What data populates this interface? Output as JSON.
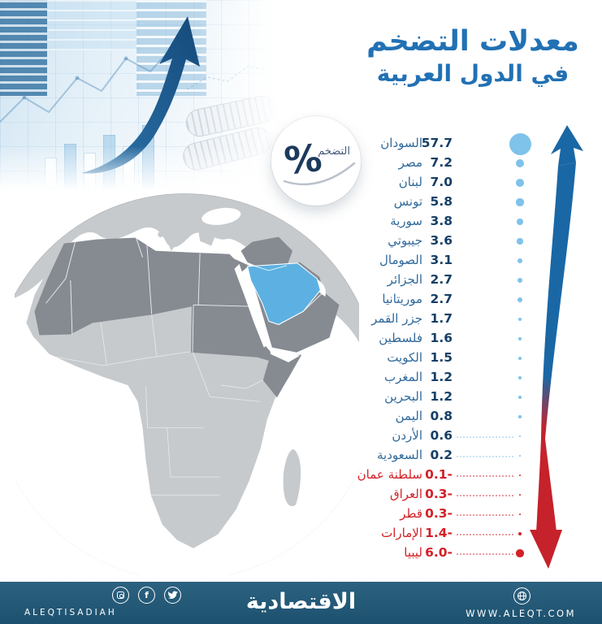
{
  "title": {
    "line1": "معدلات التضخم",
    "line2": "في الدول العربية"
  },
  "badge": {
    "label": "التضخم",
    "symbol": "%"
  },
  "chart_data": {
    "type": "scatter",
    "title": "معدلات التضخم في الدول العربية",
    "unit": "%",
    "note": "proportional-dot ranking; dot area scales with |inflation rate|; blue = positive, red = negative (deflation)",
    "categories": [
      "السودان",
      "مصر",
      "لبنان",
      "تونس",
      "سورية",
      "جيبوتي",
      "الصومال",
      "الجزائر",
      "موريتانيا",
      "جزر القمر",
      "فلسطين",
      "الكويت",
      "المغرب",
      "البحرين",
      "اليمن",
      "الأردن",
      "السعودية",
      "سلطنة عمان",
      "العراق",
      "قطر",
      "الإمارات",
      "ليبيا"
    ],
    "values": [
      57.7,
      7.2,
      7.0,
      5.8,
      3.8,
      3.6,
      3.1,
      2.7,
      2.7,
      1.7,
      1.6,
      1.5,
      1.2,
      1.2,
      0.8,
      0.6,
      0.2,
      -0.1,
      -0.3,
      -0.3,
      -1.4,
      -6.0
    ],
    "labels": [
      "57.7",
      "7.2",
      "7.0",
      "5.8",
      "3.8",
      "3.6",
      "3.1",
      "2.7",
      "2.7",
      "1.7",
      "1.6",
      "1.5",
      "1.2",
      "1.2",
      "0.8",
      "0.6",
      "0.2",
      "0.1-",
      "0.3-",
      "0.3-",
      "1.4-",
      "6.0-"
    ],
    "legend_position": "none",
    "grid": false
  },
  "footer": {
    "brand": "الاقتصادية",
    "handle": "ALEQTISADIAH",
    "website": "WWW.ALEQT.COM"
  },
  "colors": {
    "title-blue": "#2171b4",
    "name-blue": "#30699b",
    "value-navy": "#163f66",
    "negative-red": "#d32127",
    "dot-blue": "#7fc2ea",
    "arrow-blue": "#1a67a5",
    "arrow-red": "#c5222b",
    "footer-bg": "#1f5878",
    "map-light": "#c6cacd",
    "map-dark": "#868b92",
    "saudi-blue": "#5cb1e2"
  }
}
